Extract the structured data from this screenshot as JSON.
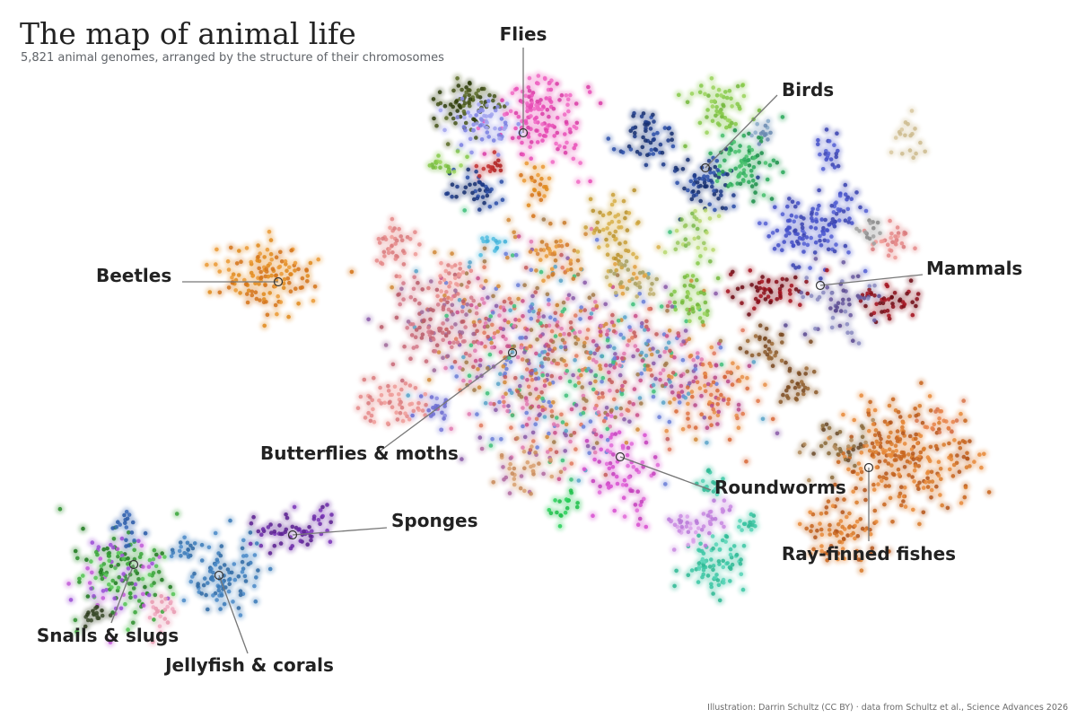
{
  "title": "The map of animal life",
  "subtitle": "5,821 animal genomes, arranged by the structure of their chromosomes",
  "credit": "Illustration: Darrin Schultz (CC BY) · data from Schultz et al., Science Advances 2026",
  "chart_data": {
    "type": "scatter",
    "point_count": 5821,
    "axes_shown": false,
    "grid": false,
    "legend": "none",
    "labels": [
      {
        "name": "Flies"
      },
      {
        "name": "Birds"
      },
      {
        "name": "Beetles"
      },
      {
        "name": "Mammals"
      },
      {
        "name": "Butterflies & moths"
      },
      {
        "name": "Roundworms"
      },
      {
        "name": "Sponges"
      },
      {
        "name": "Ray-finned fishes"
      },
      {
        "name": "Snails & slugs"
      },
      {
        "name": "Jellyfish & corals"
      }
    ],
    "colors": {
      "label_text": "#222222",
      "leader_line": "#777777",
      "title_text": "#222222",
      "subtitle_text": "#5f6368"
    }
  }
}
